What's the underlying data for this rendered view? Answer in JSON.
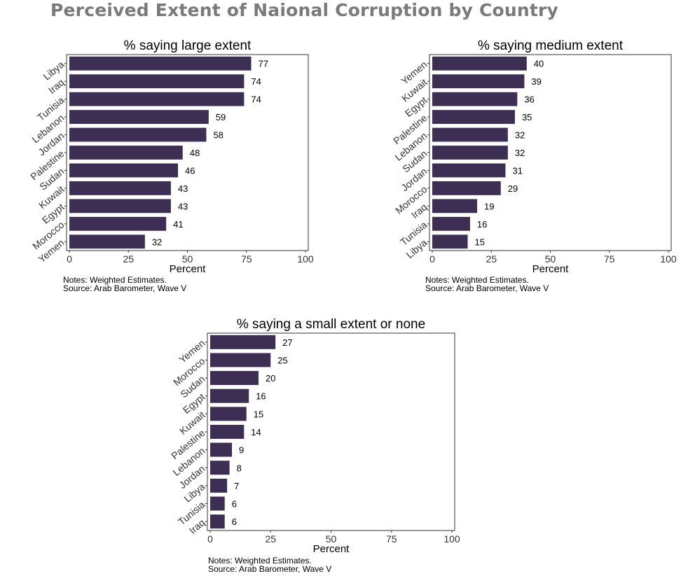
{
  "title": "Perceived Extent of Naional Corruption by Country",
  "notes": "Notes: Weighted Estimates.",
  "source": "Source: Arab Barometer, Wave V",
  "bar_color": "#3d2e54",
  "chart_data": [
    {
      "type": "bar",
      "orientation": "horizontal",
      "title": "% saying large extent",
      "xlabel": "Percent",
      "xlim": [
        0,
        100
      ],
      "xticks": [
        0,
        25,
        50,
        75,
        100
      ],
      "categories": [
        "Libya",
        "Iraq",
        "Tunisia",
        "Lebanon",
        "Jordan",
        "Palestine",
        "Sudan",
        "Kuwait",
        "Egypt",
        "Morocco",
        "Yemen"
      ],
      "values": [
        77,
        74,
        74,
        59,
        58,
        48,
        46,
        43,
        43,
        41,
        32
      ]
    },
    {
      "type": "bar",
      "orientation": "horizontal",
      "title": "% saying medium extent",
      "xlabel": "Percent",
      "xlim": [
        0,
        100
      ],
      "xticks": [
        0,
        25,
        50,
        75,
        100
      ],
      "categories": [
        "Yemen",
        "Kuwait",
        "Egypt",
        "Palestine",
        "Lebanon",
        "Sudan",
        "Jordan",
        "Morocco",
        "Iraq",
        "Tunisia",
        "Libya"
      ],
      "values": [
        40,
        39,
        36,
        35,
        32,
        32,
        31,
        29,
        19,
        16,
        15
      ]
    },
    {
      "type": "bar",
      "orientation": "horizontal",
      "title": "% saying a small extent or none",
      "xlabel": "Percent",
      "xlim": [
        0,
        100
      ],
      "xticks": [
        0,
        25,
        50,
        75,
        100
      ],
      "categories": [
        "Yemen",
        "Morocco",
        "Sudan",
        "Egypt",
        "Kuwait",
        "Palestine",
        "Lebanon",
        "Jordan",
        "Libya",
        "Tunisia",
        "Iraq"
      ],
      "values": [
        27,
        25,
        20,
        16,
        15,
        14,
        9,
        8,
        7,
        6,
        6
      ]
    }
  ]
}
